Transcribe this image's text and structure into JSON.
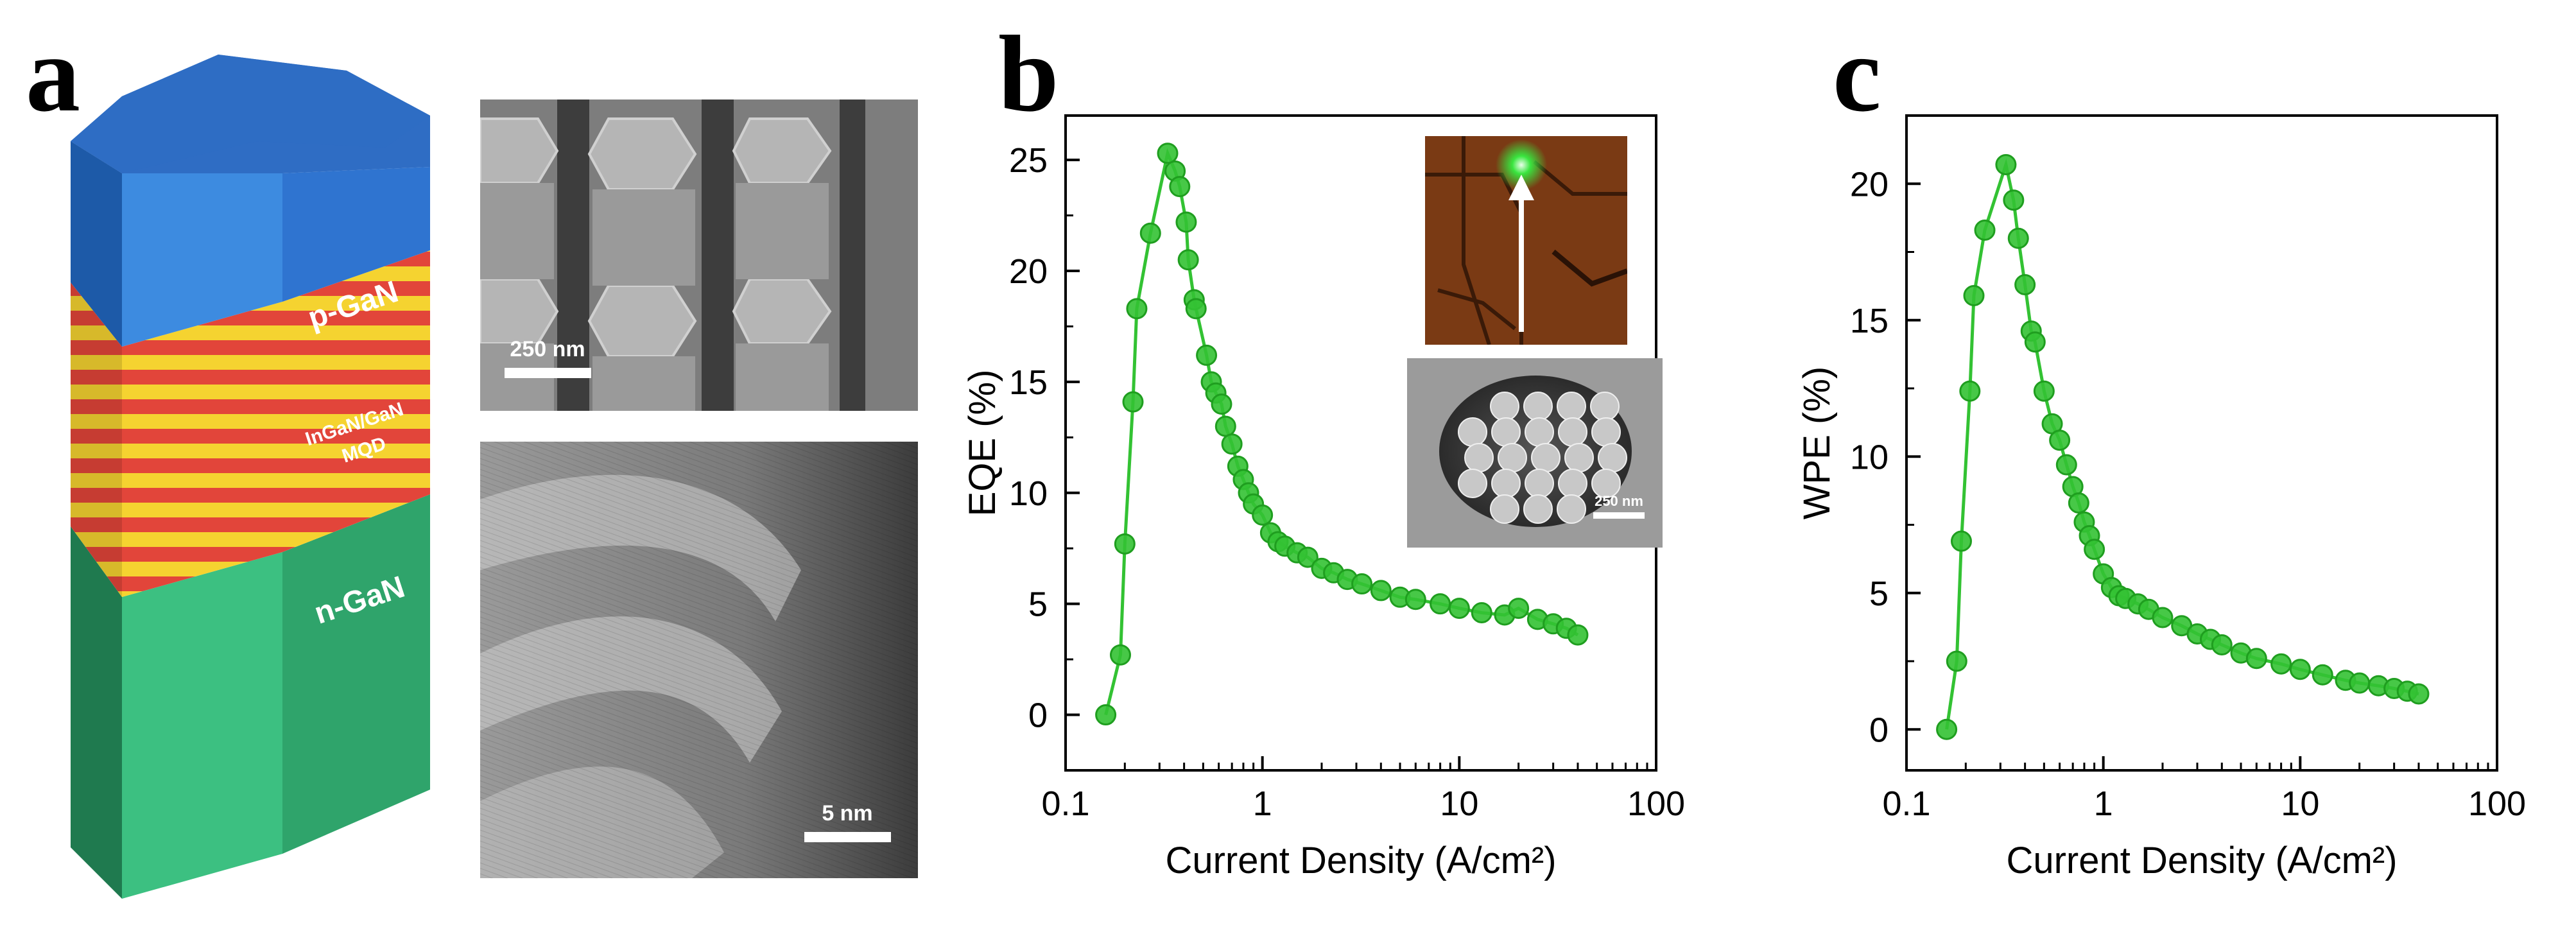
{
  "panels": {
    "a": {
      "label": "a",
      "nanowire_layers": {
        "top": "p-GaN",
        "middle_line1": "InGaN/GaN",
        "middle_line2": "MQD",
        "bottom": "n-GaN"
      },
      "colors": {
        "p_gan": "#3d8be0",
        "p_gan_top": "#2f6dc4",
        "n_gan": "#3cc081",
        "stripe_red": "#e2453a",
        "stripe_yellow": "#f5d330"
      },
      "sem_scale_bar": "250 nm",
      "tem_scale_bar": "5 nm"
    },
    "b": {
      "label": "b",
      "inset_scale_bar": "250 nm"
    },
    "c": {
      "label": "c"
    }
  },
  "chart_data": [
    {
      "id": "b",
      "type": "scatter",
      "title": "",
      "xlabel": "Current Density (A/cm²)",
      "ylabel": "EQE (%)",
      "xscale": "log",
      "xlim": [
        0.1,
        100
      ],
      "ylim": [
        -2.5,
        27
      ],
      "xticks": [
        0.1,
        1,
        10,
        100
      ],
      "xtick_labels": [
        "0.1",
        "1",
        "10",
        "100"
      ],
      "yticks": [
        0,
        5,
        10,
        15,
        20,
        25
      ],
      "ytick_labels": [
        "0",
        "5",
        "10",
        "15",
        "20",
        "25"
      ],
      "color": "#33c233",
      "series": [
        {
          "name": "EQE",
          "x": [
            0.16,
            0.19,
            0.2,
            0.22,
            0.23,
            0.27,
            0.33,
            0.36,
            0.38,
            0.41,
            0.42,
            0.45,
            0.46,
            0.52,
            0.55,
            0.58,
            0.62,
            0.65,
            0.7,
            0.75,
            0.8,
            0.85,
            0.9,
            1.0,
            1.1,
            1.2,
            1.3,
            1.5,
            1.7,
            2.0,
            2.3,
            2.7,
            3.2,
            4.0,
            5.0,
            6.0,
            8.0,
            10.0,
            13.0,
            17.0,
            20.0,
            25.0,
            30.0,
            35.0,
            40.0
          ],
          "y": [
            0,
            2.7,
            7.7,
            14.1,
            18.3,
            21.7,
            25.3,
            24.5,
            23.8,
            22.2,
            20.5,
            18.7,
            18.3,
            16.2,
            15.0,
            14.5,
            14.0,
            13.0,
            12.2,
            11.2,
            10.6,
            10.0,
            9.5,
            9.0,
            8.2,
            7.8,
            7.6,
            7.3,
            7.1,
            6.6,
            6.4,
            6.1,
            5.9,
            5.6,
            5.3,
            5.2,
            5.0,
            4.8,
            4.6,
            4.5,
            4.8,
            4.3,
            4.1,
            3.9,
            3.6
          ]
        }
      ]
    },
    {
      "id": "c",
      "type": "scatter",
      "title": "",
      "xlabel": "Current Density (A/cm²)",
      "ylabel": "WPE (%)",
      "xscale": "log",
      "xlim": [
        0.1,
        100
      ],
      "ylim": [
        -1.5,
        22.5
      ],
      "xticks": [
        0.1,
        1,
        10,
        100
      ],
      "xtick_labels": [
        "0.1",
        "1",
        "10",
        "100"
      ],
      "yticks": [
        0,
        5,
        10,
        15,
        20
      ],
      "ytick_labels": [
        "0",
        "5",
        "10",
        "15",
        "20"
      ],
      "color": "#33c233",
      "series": [
        {
          "name": "WPE",
          "x": [
            0.16,
            0.18,
            0.19,
            0.21,
            0.22,
            0.25,
            0.32,
            0.35,
            0.37,
            0.4,
            0.43,
            0.45,
            0.5,
            0.55,
            0.6,
            0.65,
            0.7,
            0.75,
            0.8,
            0.85,
            0.9,
            1.0,
            1.1,
            1.2,
            1.3,
            1.5,
            1.7,
            2.0,
            2.5,
            3.0,
            3.5,
            4.0,
            5.0,
            6.0,
            8.0,
            10.0,
            13.0,
            17.0,
            20.0,
            25.0,
            30.0,
            35.0,
            40.0
          ],
          "y": [
            0,
            2.5,
            6.9,
            12.4,
            15.9,
            18.3,
            20.7,
            19.4,
            18.0,
            16.3,
            14.6,
            14.2,
            12.4,
            11.2,
            10.6,
            9.7,
            8.9,
            8.3,
            7.6,
            7.1,
            6.6,
            5.7,
            5.2,
            4.9,
            4.8,
            4.6,
            4.4,
            4.1,
            3.8,
            3.5,
            3.3,
            3.1,
            2.8,
            2.6,
            2.4,
            2.2,
            2.0,
            1.8,
            1.7,
            1.6,
            1.5,
            1.4,
            1.3
          ]
        }
      ]
    }
  ]
}
